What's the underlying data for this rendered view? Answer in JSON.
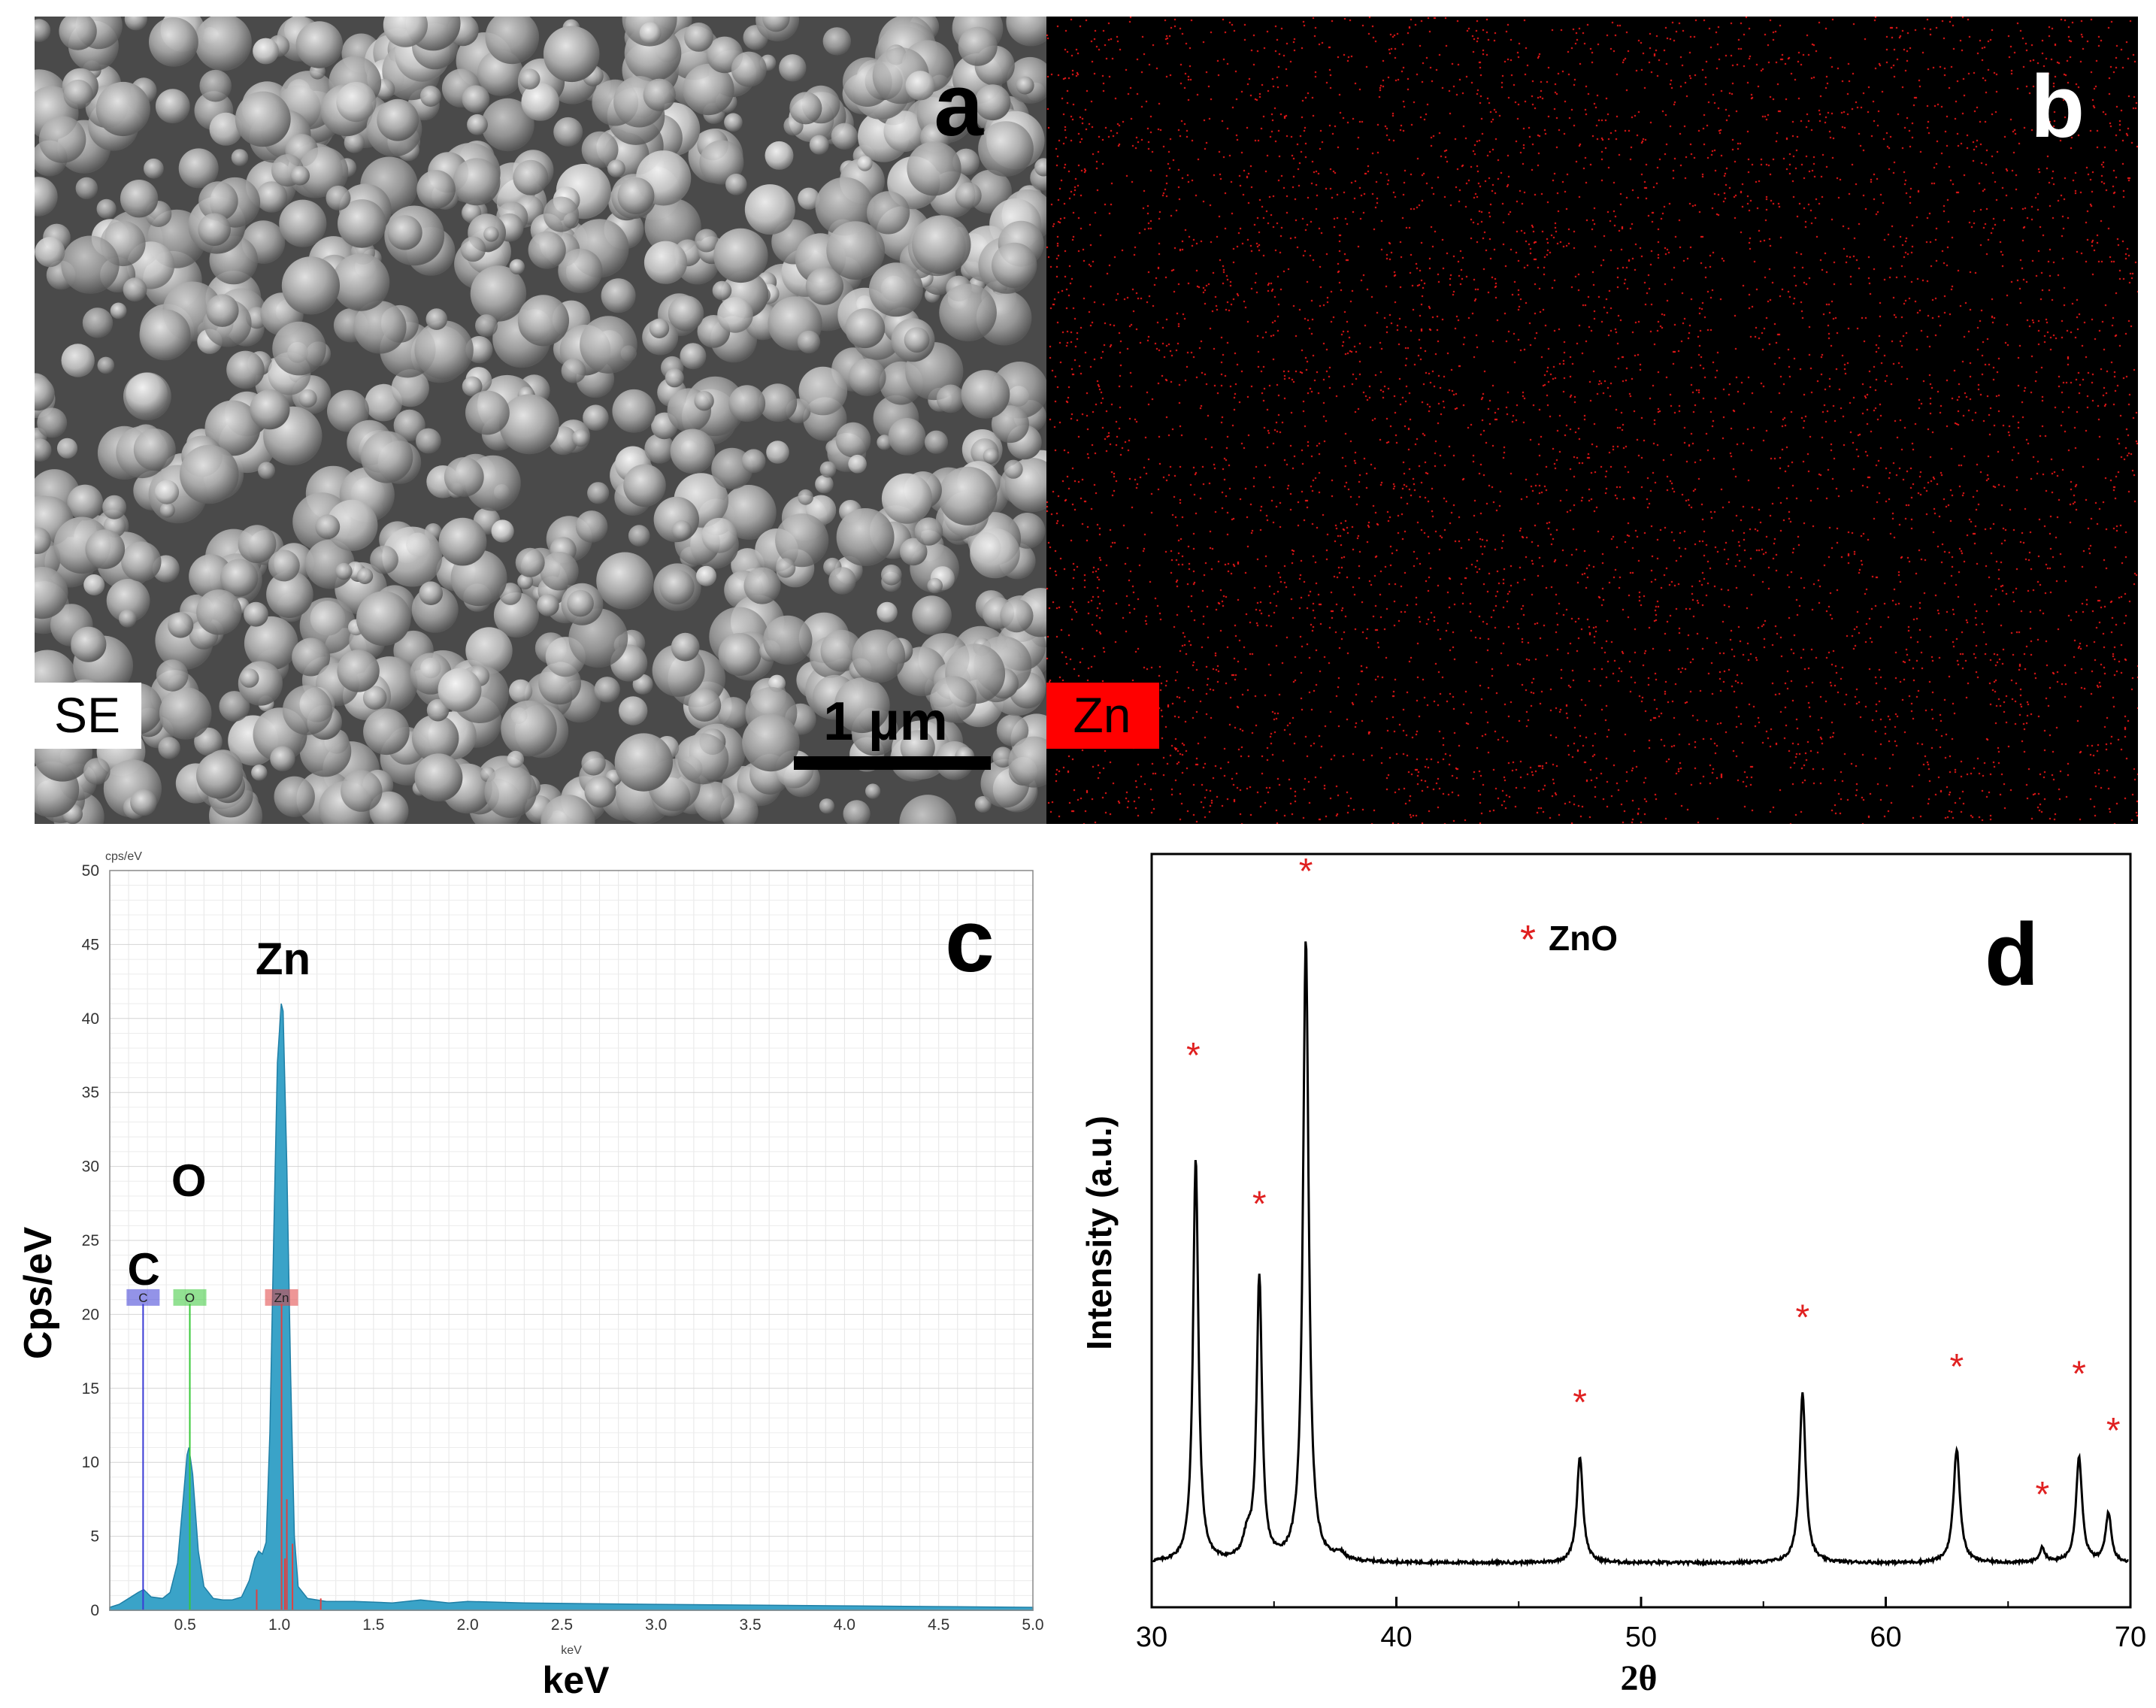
{
  "panels": {
    "a": {
      "letter": "a",
      "mode_label": "SE",
      "scale_bar_label": "1 µm"
    },
    "b": {
      "letter": "b",
      "element_label": "Zn"
    },
    "c": {
      "letter": "c"
    },
    "d": {
      "letter": "d"
    }
  },
  "colors": {
    "map_red": "#ff1a1a",
    "eds_fill": "#3aa3c8",
    "eds_C": "#3b3bd6",
    "eds_O": "#38c838",
    "eds_Zn": "#e04040",
    "xrd_line": "#000000",
    "asterisk": "#e02020"
  },
  "chart_data": [
    {
      "type": "area",
      "panel": "c",
      "ylabel": "Cps/eV",
      "xlabel": "keV",
      "unit_top": "cps/eV",
      "unit_bottom": "keV",
      "xlim": [
        0.1,
        5.0
      ],
      "ylim": [
        0,
        50
      ],
      "x_ticks": [
        "0.5",
        "1.0",
        "1.5",
        "2.0",
        "2.5",
        "3.0",
        "3.5",
        "4.0",
        "4.5",
        "5.0"
      ],
      "y_ticks": [
        "0",
        "5",
        "10",
        "15",
        "20",
        "25",
        "30",
        "35",
        "40",
        "45",
        "50"
      ],
      "grid": true,
      "peak_labels": [
        {
          "text": "Zn",
          "x": 1.02,
          "y": 43
        },
        {
          "text": "O",
          "x": 0.52,
          "y": 28
        },
        {
          "text": "C",
          "x": 0.28,
          "y": 22
        }
      ],
      "element_markers": [
        {
          "name": "C",
          "energy": 0.277,
          "color": "#3b3bd6"
        },
        {
          "name": "O",
          "energy": 0.525,
          "color": "#38c838"
        },
        {
          "name": "Zn",
          "energy": 1.012,
          "color": "#e04040"
        }
      ],
      "spectrum": [
        [
          0.1,
          0.2
        ],
        [
          0.15,
          0.4
        ],
        [
          0.2,
          0.8
        ],
        [
          0.25,
          1.2
        ],
        [
          0.28,
          1.4
        ],
        [
          0.32,
          0.9
        ],
        [
          0.38,
          0.8
        ],
        [
          0.42,
          1.2
        ],
        [
          0.46,
          3.2
        ],
        [
          0.49,
          7.5
        ],
        [
          0.51,
          10.5
        ],
        [
          0.52,
          11.0
        ],
        [
          0.54,
          9.2
        ],
        [
          0.57,
          4.0
        ],
        [
          0.6,
          1.6
        ],
        [
          0.65,
          0.8
        ],
        [
          0.7,
          0.7
        ],
        [
          0.75,
          0.7
        ],
        [
          0.8,
          0.9
        ],
        [
          0.84,
          2.0
        ],
        [
          0.87,
          3.5
        ],
        [
          0.89,
          4.0
        ],
        [
          0.91,
          3.8
        ],
        [
          0.93,
          4.6
        ],
        [
          0.95,
          12.0
        ],
        [
          0.97,
          25.0
        ],
        [
          0.99,
          37.0
        ],
        [
          1.01,
          41.0
        ],
        [
          1.02,
          40.5
        ],
        [
          1.04,
          30.0
        ],
        [
          1.06,
          16.0
        ],
        [
          1.08,
          5.0
        ],
        [
          1.1,
          1.6
        ],
        [
          1.15,
          0.8
        ],
        [
          1.25,
          0.6
        ],
        [
          1.4,
          0.6
        ],
        [
          1.6,
          0.5
        ],
        [
          1.75,
          0.7
        ],
        [
          1.9,
          0.5
        ],
        [
          2.0,
          0.6
        ],
        [
          2.3,
          0.5
        ],
        [
          2.6,
          0.45
        ],
        [
          3.0,
          0.4
        ],
        [
          3.5,
          0.35
        ],
        [
          4.0,
          0.3
        ],
        [
          4.5,
          0.25
        ],
        [
          5.0,
          0.2
        ]
      ]
    },
    {
      "type": "line",
      "panel": "d",
      "xlabel": "2θ",
      "ylabel": "Intensity (a.u.)",
      "xlim": [
        30,
        70
      ],
      "x_ticks": [
        "30",
        "40",
        "50",
        "60",
        "70"
      ],
      "legend": {
        "marker": "*",
        "label": "ZnO",
        "placement": "top-center"
      },
      "baseline": 0.02,
      "peaks": [
        {
          "pos": 31.8,
          "height": 0.57,
          "width": 0.13
        },
        {
          "pos": 34.4,
          "height": 0.4,
          "width": 0.13
        },
        {
          "pos": 33.9,
          "height": 0.03,
          "width": 0.2
        },
        {
          "pos": 36.3,
          "height": 0.88,
          "width": 0.14
        },
        {
          "pos": 37.7,
          "height": 0.01,
          "width": 0.2
        },
        {
          "pos": 47.5,
          "height": 0.15,
          "width": 0.15
        },
        {
          "pos": 56.6,
          "height": 0.24,
          "width": 0.15
        },
        {
          "pos": 62.9,
          "height": 0.16,
          "width": 0.16
        },
        {
          "pos": 66.4,
          "height": 0.02,
          "width": 0.14
        },
        {
          "pos": 67.9,
          "height": 0.15,
          "width": 0.15
        },
        {
          "pos": 69.1,
          "height": 0.07,
          "width": 0.14
        }
      ],
      "asterisks": [
        {
          "x": 31.7,
          "y": 0.72
        },
        {
          "x": 34.4,
          "y": 0.51
        },
        {
          "x": 36.3,
          "y": 0.98
        },
        {
          "x": 47.5,
          "y": 0.23
        },
        {
          "x": 56.6,
          "y": 0.35
        },
        {
          "x": 62.9,
          "y": 0.28
        },
        {
          "x": 66.4,
          "y": 0.1
        },
        {
          "x": 67.9,
          "y": 0.27
        },
        {
          "x": 69.3,
          "y": 0.19
        }
      ]
    }
  ]
}
